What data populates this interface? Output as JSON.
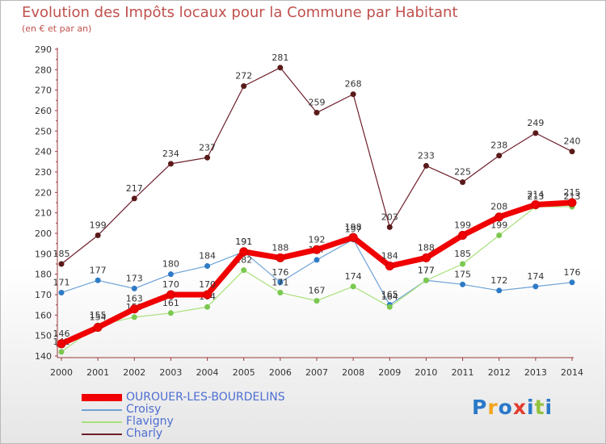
{
  "title": "Evolution des Impôts locaux pour la Commune par Habitant",
  "subtitle": "(en € et par an)",
  "logo": {
    "text": "Proxiti",
    "colors": [
      "#2a79c9",
      "#f3a51c",
      "#2a79c9",
      "#e23b2f",
      "#2a79c9",
      "#93c23c",
      "#2a79c9"
    ]
  },
  "chart_data": {
    "type": "line",
    "title": "Evolution des Impôts locaux pour la Commune par Habitant",
    "subtitle": "(en € et par an)",
    "x": [
      "2000",
      "2001",
      "2002",
      "2003",
      "2004",
      "2005",
      "2006",
      "2007",
      "2008",
      "2009",
      "2010",
      "2011",
      "2012",
      "2013",
      "2014"
    ],
    "ylim": [
      140,
      290
    ],
    "yticks": [
      140,
      150,
      160,
      170,
      180,
      190,
      200,
      210,
      220,
      230,
      240,
      250,
      260,
      270,
      280,
      290
    ],
    "grid": false,
    "legend_position": "bottom-left",
    "series": [
      {
        "name": "Charly",
        "color": "#6e1f2b",
        "point_color": "#5a1a1a",
        "width": 1.2,
        "values": [
          185,
          199,
          217,
          234,
          237,
          272,
          281,
          259,
          268,
          203,
          233,
          225,
          238,
          249,
          240
        ]
      },
      {
        "name": "Croisy",
        "color": "#6ea2d6",
        "point_color": "#2e7bc6",
        "width": 1.2,
        "values": [
          171,
          177,
          173,
          180,
          184,
          191,
          176,
          187,
          197,
          165,
          177,
          175,
          172,
          174,
          176
        ]
      },
      {
        "name": "Flavigny",
        "color": "#a8e07a",
        "point_color": "#7bc850",
        "width": 1.2,
        "values": [
          142,
          155,
          159,
          161,
          164,
          182,
          171,
          167,
          174,
          164,
          177,
          185,
          199,
          213,
          213
        ]
      },
      {
        "name": "OUROUER-LES-BOURDELINS",
        "color": "#f00000",
        "point_color": "#f00000",
        "width": 7,
        "values": [
          146,
          154,
          163,
          170,
          170,
          191,
          188,
          192,
          198,
          184,
          188,
          199,
          208,
          214,
          215
        ]
      }
    ]
  }
}
